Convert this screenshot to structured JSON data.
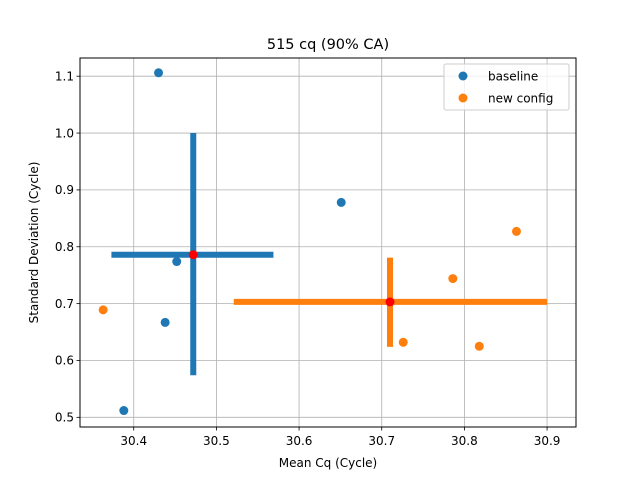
{
  "chart_data": {
    "type": "scatter",
    "title": "515 cq (90% CA)",
    "xlabel": "Mean Cq (Cycle)",
    "ylabel": "Standard Deviation (Cycle)",
    "xlim": [
      30.335,
      30.935
    ],
    "ylim": [
      0.483,
      1.132
    ],
    "xticks": [
      "30.4",
      "30.5",
      "30.6",
      "30.7",
      "30.8",
      "30.9"
    ],
    "yticks": [
      "0.5",
      "0.6",
      "0.7",
      "0.8",
      "0.9",
      "1.0",
      "1.1"
    ],
    "grid": true,
    "legend_position": "top-right",
    "series": [
      {
        "name": "baseline",
        "color": "#1f77b4",
        "points": [
          {
            "x": 30.43,
            "y": 1.106
          },
          {
            "x": 30.651,
            "y": 0.878
          },
          {
            "x": 30.452,
            "y": 0.774
          },
          {
            "x": 30.438,
            "y": 0.667
          },
          {
            "x": 30.388,
            "y": 0.512
          }
        ],
        "center": {
          "x": 30.472,
          "y": 0.786
        },
        "x_interval": [
          30.373,
          30.569
        ],
        "y_interval": [
          0.574,
          1.0
        ]
      },
      {
        "name": "new config",
        "color": "#ff7f0e",
        "points": [
          {
            "x": 30.863,
            "y": 0.827
          },
          {
            "x": 30.786,
            "y": 0.744
          },
          {
            "x": 30.363,
            "y": 0.689
          },
          {
            "x": 30.726,
            "y": 0.632
          },
          {
            "x": 30.818,
            "y": 0.625
          }
        ],
        "center": {
          "x": 30.71,
          "y": 0.703
        },
        "x_interval": [
          30.521,
          30.9
        ],
        "y_interval": [
          0.624,
          0.781
        ]
      }
    ],
    "center_marker_color": "#ff0000"
  }
}
